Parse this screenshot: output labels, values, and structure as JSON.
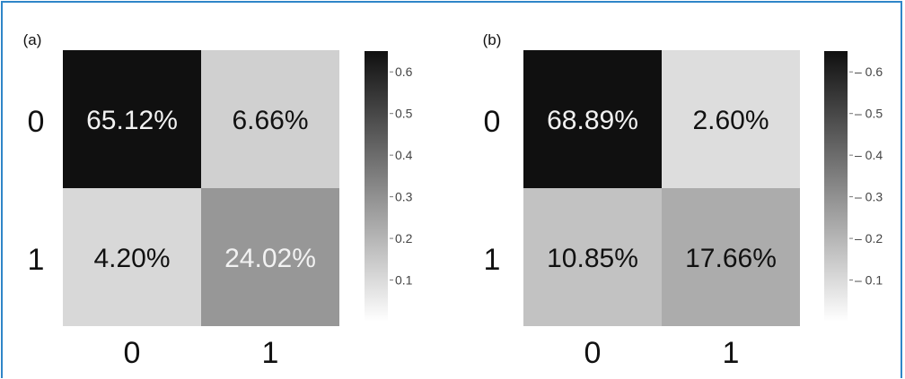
{
  "chart_data": [
    {
      "type": "heatmap",
      "panel_label": "(a)",
      "row_labels": [
        "0",
        "1"
      ],
      "col_labels": [
        "0",
        "1"
      ],
      "values": [
        [
          65.12,
          6.66
        ],
        [
          4.2,
          24.02
        ]
      ],
      "cell_labels": [
        [
          "65.12%",
          "6.66%"
        ],
        [
          "4.20%",
          "24.02%"
        ]
      ],
      "colorbar": {
        "range": [
          0,
          0.65
        ],
        "ticks": [
          0.1,
          0.2,
          0.3,
          0.4,
          0.5,
          0.6
        ],
        "tick_labels": [
          "0.1",
          "0.2",
          "0.3",
          "0.4",
          "0.5",
          "0.6"
        ]
      },
      "colors": {
        "low": "#ffffff",
        "high": "#101010"
      }
    },
    {
      "type": "heatmap",
      "panel_label": "(b)",
      "row_labels": [
        "0",
        "1"
      ],
      "col_labels": [
        "0",
        "1"
      ],
      "values": [
        [
          68.89,
          2.6
        ],
        [
          10.85,
          17.66
        ]
      ],
      "cell_labels": [
        [
          "68.89%",
          "2.60%"
        ],
        [
          "10.85%",
          "17.66%"
        ]
      ],
      "colorbar": {
        "range": [
          0,
          0.65
        ],
        "ticks": [
          0.1,
          0.2,
          0.3,
          0.4,
          0.5,
          0.6
        ],
        "tick_labels": [
          "– 0.1",
          "– 0.2",
          "– 0.3",
          "– 0.4",
          "– 0.5",
          "– 0.6"
        ]
      },
      "colors": {
        "low": "#ffffff",
        "high": "#101010"
      }
    }
  ],
  "colors": {
    "frame_border": "#2f86c8",
    "axis_text": "#111111",
    "cell_text_light": "#f2f2f2",
    "cell_text_dark": "#111111"
  }
}
